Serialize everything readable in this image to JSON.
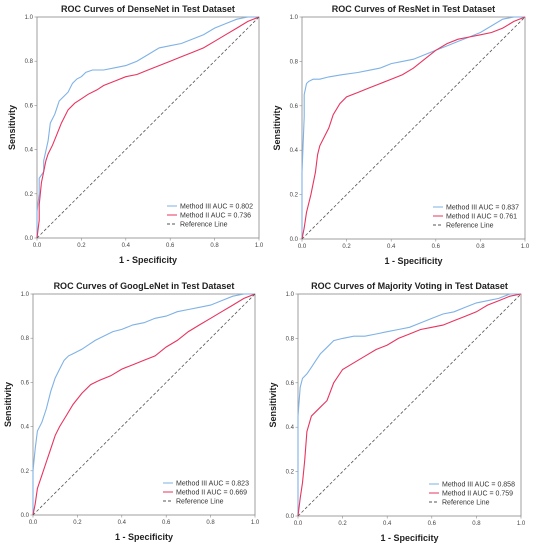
{
  "colors": {
    "method3": "#7fb2e6",
    "method2": "#e8345f",
    "reference": "#555555"
  },
  "chart_data": [
    {
      "type": "line",
      "title": "ROC Curves of DenseNet in Test Dataset",
      "xlabel": "1 - Specificity",
      "ylabel": "Sensitivity",
      "xlim": [
        0,
        1
      ],
      "ylim": [
        0,
        1
      ],
      "ticks": [
        "0.0",
        "0.2",
        "0.4",
        "0.6",
        "0.8",
        "1.0"
      ],
      "legend_position": "bottom-right",
      "series": [
        {
          "name": "Method III AUC = 0.802",
          "color_key": "method3",
          "x": [
            0,
            0,
            0.01,
            0.01,
            0.03,
            0.03,
            0.05,
            0.06,
            0.08,
            0.09,
            0.1,
            0.12,
            0.14,
            0.16,
            0.18,
            0.2,
            0.22,
            0.25,
            0.3,
            0.35,
            0.4,
            0.45,
            0.5,
            0.55,
            0.6,
            0.65,
            0.7,
            0.75,
            0.8,
            0.85,
            0.9,
            0.95,
            1.0
          ],
          "y": [
            0,
            0.12,
            0.2,
            0.27,
            0.3,
            0.35,
            0.44,
            0.52,
            0.56,
            0.59,
            0.62,
            0.64,
            0.66,
            0.7,
            0.72,
            0.73,
            0.75,
            0.76,
            0.76,
            0.77,
            0.78,
            0.8,
            0.83,
            0.86,
            0.87,
            0.88,
            0.9,
            0.92,
            0.95,
            0.97,
            0.99,
            1.0,
            1.0
          ]
        },
        {
          "name": "Method II AUC = 0.736",
          "color_key": "method2",
          "x": [
            0,
            0.01,
            0.01,
            0.02,
            0.03,
            0.04,
            0.05,
            0.07,
            0.09,
            0.11,
            0.14,
            0.17,
            0.2,
            0.23,
            0.27,
            0.3,
            0.35,
            0.4,
            0.45,
            0.5,
            0.55,
            0.6,
            0.65,
            0.7,
            0.75,
            0.8,
            0.85,
            0.9,
            0.95,
            1.0
          ],
          "y": [
            0,
            0.08,
            0.15,
            0.25,
            0.3,
            0.35,
            0.38,
            0.42,
            0.47,
            0.52,
            0.58,
            0.61,
            0.63,
            0.65,
            0.67,
            0.69,
            0.71,
            0.73,
            0.74,
            0.76,
            0.78,
            0.8,
            0.82,
            0.84,
            0.86,
            0.89,
            0.92,
            0.95,
            0.98,
            1.0
          ]
        },
        {
          "name": "Reference Line",
          "color_key": "reference",
          "dashed": true,
          "x": [
            0,
            1
          ],
          "y": [
            0,
            1
          ]
        }
      ]
    },
    {
      "type": "line",
      "title": "ROC Curves of ResNet in Test Dataset",
      "xlabel": "1 - Specificity",
      "ylabel": "Sensitivity",
      "xlim": [
        0,
        1
      ],
      "ylim": [
        0,
        1
      ],
      "ticks": [
        "0.0",
        "0.2",
        "0.4",
        "0.6",
        "0.8",
        "1.0"
      ],
      "legend_position": "bottom-right",
      "series": [
        {
          "name": "Method III AUC = 0.837",
          "color_key": "method3",
          "x": [
            0,
            0,
            0.01,
            0.01,
            0.02,
            0.03,
            0.05,
            0.08,
            0.12,
            0.18,
            0.25,
            0.3,
            0.35,
            0.4,
            0.45,
            0.5,
            0.55,
            0.6,
            0.65,
            0.7,
            0.75,
            0.8,
            0.85,
            0.9,
            0.95,
            1.0
          ],
          "y": [
            0,
            0.3,
            0.55,
            0.65,
            0.7,
            0.71,
            0.72,
            0.72,
            0.73,
            0.74,
            0.75,
            0.76,
            0.77,
            0.79,
            0.8,
            0.81,
            0.83,
            0.85,
            0.87,
            0.89,
            0.91,
            0.93,
            0.96,
            0.99,
            1.0,
            1.0
          ]
        },
        {
          "name": "Method II AUC = 0.761",
          "color_key": "method2",
          "x": [
            0,
            0.01,
            0.02,
            0.04,
            0.06,
            0.07,
            0.08,
            0.1,
            0.12,
            0.14,
            0.17,
            0.2,
            0.25,
            0.3,
            0.35,
            0.4,
            0.45,
            0.5,
            0.55,
            0.6,
            0.65,
            0.7,
            0.75,
            0.8,
            0.85,
            0.9,
            0.95,
            1.0
          ],
          "y": [
            0,
            0.05,
            0.12,
            0.2,
            0.3,
            0.38,
            0.42,
            0.46,
            0.5,
            0.56,
            0.61,
            0.64,
            0.66,
            0.68,
            0.7,
            0.72,
            0.74,
            0.77,
            0.81,
            0.85,
            0.88,
            0.9,
            0.91,
            0.92,
            0.93,
            0.95,
            0.98,
            1.0
          ]
        },
        {
          "name": "Reference Line",
          "color_key": "reference",
          "dashed": true,
          "x": [
            0,
            1
          ],
          "y": [
            0,
            1
          ]
        }
      ]
    },
    {
      "type": "line",
      "title": "ROC Curves of GoogLeNet in Test Dataset",
      "xlabel": "1 - Specificity",
      "ylabel": "Sensitivity",
      "xlim": [
        0,
        1
      ],
      "ylim": [
        0,
        1
      ],
      "ticks": [
        "0.0",
        "0.2",
        "0.4",
        "0.6",
        "0.8",
        "1.0"
      ],
      "legend_position": "bottom-right",
      "series": [
        {
          "name": "Method III AUC = 0.823",
          "color_key": "method3",
          "x": [
            0,
            0,
            0.01,
            0.02,
            0.04,
            0.06,
            0.08,
            0.1,
            0.12,
            0.14,
            0.16,
            0.18,
            0.2,
            0.22,
            0.25,
            0.28,
            0.32,
            0.36,
            0.4,
            0.45,
            0.5,
            0.55,
            0.6,
            0.65,
            0.7,
            0.75,
            0.8,
            0.85,
            0.9,
            0.95,
            1.0
          ],
          "y": [
            0,
            0.2,
            0.3,
            0.38,
            0.42,
            0.48,
            0.56,
            0.62,
            0.66,
            0.7,
            0.72,
            0.73,
            0.74,
            0.75,
            0.77,
            0.79,
            0.81,
            0.83,
            0.84,
            0.86,
            0.87,
            0.89,
            0.9,
            0.92,
            0.93,
            0.94,
            0.95,
            0.97,
            0.99,
            1.0,
            1.0
          ]
        },
        {
          "name": "Method II AUC = 0.669",
          "color_key": "method2",
          "x": [
            0,
            0.01,
            0.02,
            0.04,
            0.06,
            0.08,
            0.1,
            0.12,
            0.15,
            0.18,
            0.22,
            0.26,
            0.3,
            0.35,
            0.4,
            0.45,
            0.5,
            0.55,
            0.6,
            0.65,
            0.7,
            0.75,
            0.8,
            0.85,
            0.9,
            0.95,
            1.0
          ],
          "y": [
            0,
            0.05,
            0.12,
            0.18,
            0.24,
            0.3,
            0.36,
            0.4,
            0.45,
            0.5,
            0.55,
            0.59,
            0.61,
            0.63,
            0.66,
            0.68,
            0.7,
            0.72,
            0.76,
            0.79,
            0.83,
            0.86,
            0.89,
            0.92,
            0.95,
            0.98,
            1.0
          ]
        },
        {
          "name": "Reference Line",
          "color_key": "reference",
          "dashed": true,
          "x": [
            0,
            1
          ],
          "y": [
            0,
            1
          ]
        }
      ]
    },
    {
      "type": "line",
      "title": "ROC Curves of Majority Voting in Test Dataset",
      "xlabel": "1 - Specificity",
      "ylabel": "Sensitivity",
      "xlim": [
        0,
        1
      ],
      "ylim": [
        0,
        1
      ],
      "ticks": [
        "0.0",
        "0.2",
        "0.4",
        "0.6",
        "0.8",
        "1.0"
      ],
      "legend_position": "bottom-right",
      "series": [
        {
          "name": "Method III AUC = 0.858",
          "color_key": "method3",
          "x": [
            0,
            0,
            0.01,
            0.02,
            0.04,
            0.06,
            0.08,
            0.1,
            0.13,
            0.16,
            0.2,
            0.25,
            0.3,
            0.35,
            0.4,
            0.45,
            0.5,
            0.55,
            0.6,
            0.65,
            0.7,
            0.75,
            0.8,
            0.85,
            0.9,
            0.95,
            1.0
          ],
          "y": [
            0,
            0.45,
            0.58,
            0.62,
            0.64,
            0.67,
            0.7,
            0.73,
            0.76,
            0.79,
            0.8,
            0.81,
            0.81,
            0.82,
            0.83,
            0.84,
            0.85,
            0.87,
            0.89,
            0.91,
            0.92,
            0.94,
            0.96,
            0.97,
            0.98,
            1.0,
            1.0
          ]
        },
        {
          "name": "Method II AUC = 0.759",
          "color_key": "method2",
          "x": [
            0,
            0.01,
            0.02,
            0.03,
            0.04,
            0.06,
            0.08,
            0.1,
            0.13,
            0.16,
            0.2,
            0.25,
            0.3,
            0.35,
            0.4,
            0.45,
            0.5,
            0.55,
            0.6,
            0.65,
            0.7,
            0.75,
            0.8,
            0.85,
            0.9,
            0.95,
            1.0
          ],
          "y": [
            0,
            0.08,
            0.15,
            0.25,
            0.38,
            0.45,
            0.47,
            0.49,
            0.52,
            0.6,
            0.66,
            0.69,
            0.72,
            0.75,
            0.77,
            0.8,
            0.82,
            0.84,
            0.85,
            0.86,
            0.88,
            0.9,
            0.92,
            0.95,
            0.97,
            0.99,
            1.0
          ]
        },
        {
          "name": "Reference Line",
          "color_key": "reference",
          "dashed": true,
          "x": [
            0,
            1
          ],
          "y": [
            0,
            1
          ]
        }
      ]
    }
  ]
}
